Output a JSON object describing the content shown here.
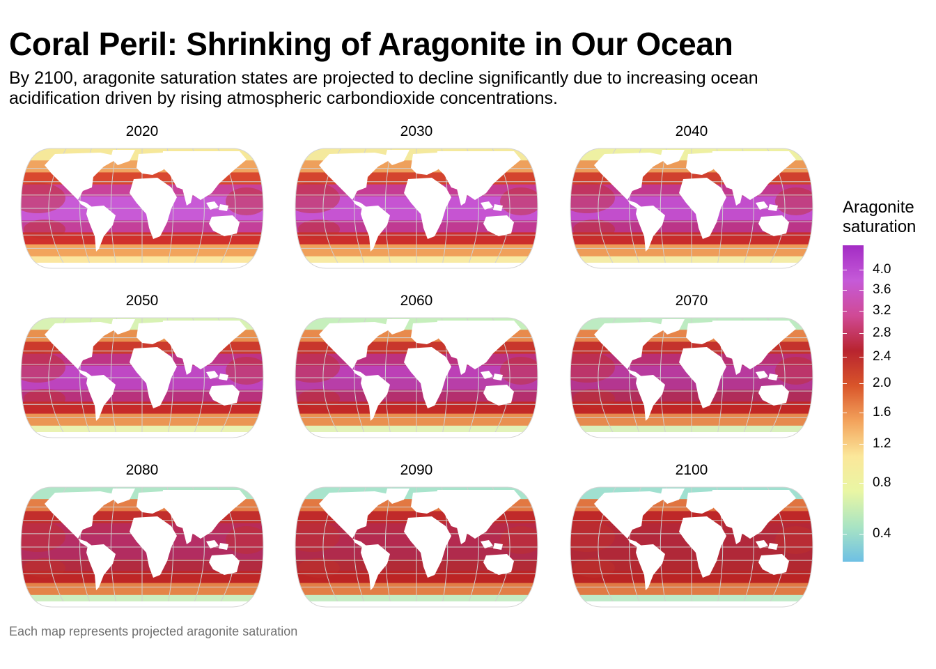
{
  "header": {
    "title": "Coral Peril: Shrinking of Aragonite in Our Ocean",
    "subtitle": "By 2100, aragonite saturation states are projected to decline significantly due to increasing ocean acidification driven by rising atmospheric carbondioxide concentrations."
  },
  "caption": "Each map represents projected aragonite saturation",
  "panels": [
    {
      "year": "2020"
    },
    {
      "year": "2030"
    },
    {
      "year": "2040"
    },
    {
      "year": "2050"
    },
    {
      "year": "2060"
    },
    {
      "year": "2070"
    },
    {
      "year": "2080"
    },
    {
      "year": "2090"
    },
    {
      "year": "2100"
    }
  ],
  "legend": {
    "title_line1": "Aragonite",
    "title_line2": "saturation",
    "ticks": [
      "4.0",
      "3.6",
      "3.2",
      "2.8",
      "2.4",
      "2.0",
      "1.6",
      "1.2",
      "0.8",
      "0.4"
    ],
    "tick_values": [
      4.0,
      3.6,
      3.2,
      2.8,
      2.4,
      2.0,
      1.6,
      1.2,
      0.8,
      0.4
    ],
    "colors": [
      "#a32cc4",
      "#c55ad8",
      "#d04a95",
      "#b8242f",
      "#d9552a",
      "#f3a35c",
      "#fbe79a",
      "#e9f6a4",
      "#a9e4c3",
      "#6ec0e4"
    ]
  },
  "palette": {
    "graticule": "#d0d0d0",
    "land": "#ffffff",
    "outline": "#d4d4d4"
  }
}
